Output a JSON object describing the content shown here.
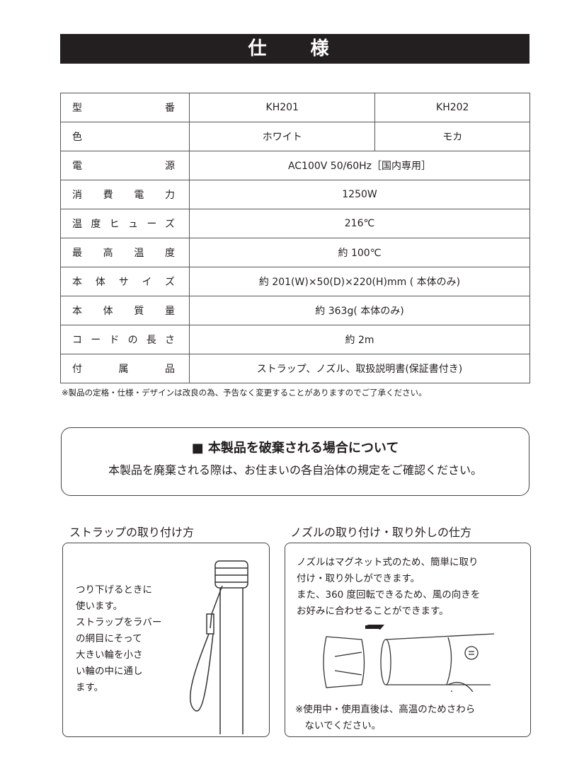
{
  "title": "仕　様",
  "specs": [
    {
      "label": "型番",
      "values": [
        "KH201",
        "KH202"
      ]
    },
    {
      "label": "色",
      "values": [
        "ホワイト",
        "モカ"
      ]
    },
    {
      "label": "電源",
      "value": "AC100V  50/60Hz［国内専用］"
    },
    {
      "label": "消費電力",
      "value": "1250W"
    },
    {
      "label": "温度ヒューズ",
      "value": "216℃"
    },
    {
      "label": "最高温度",
      "value": "約 100℃"
    },
    {
      "label": "本体サイズ",
      "value": "約 201(W)×50(D)×220(H)mm ( 本体のみ)"
    },
    {
      "label": "本体質量",
      "value": "約 363g( 本体のみ)"
    },
    {
      "label": "コードの長さ",
      "value": "約 2m"
    },
    {
      "label": "付属品",
      "value": "ストラップ、ノズル、取扱説明書(保証書付き)"
    }
  ],
  "note": "※製品の定格・仕様・デザインは改良の為、予告なく変更することがありますのでご了承ください。",
  "disposal": {
    "title": "■ 本製品を破棄される場合について",
    "text": "本製品を廃棄される際は、お住まいの各自治体の規定をご確認ください。"
  },
  "strap": {
    "title": "ストラップの取り付け方",
    "lines": [
      "つり下げるときに",
      "使います。",
      "ストラップをラバー",
      "の網目にそって",
      "大きい輪を小さ",
      "い輪の中に通し",
      "ます。"
    ]
  },
  "nozzle": {
    "title": "ノズルの取り付け・取り外しの仕方",
    "lines": [
      "ノズルはマグネット式のため、簡単に取り",
      "付け・取り外しができます。",
      "また、360 度回転できるため、風の向きを",
      "お好みに合わせることができます。"
    ],
    "warning": [
      "※使用中・使用直後は、高温のためさわら",
      "　ないでください。"
    ]
  }
}
